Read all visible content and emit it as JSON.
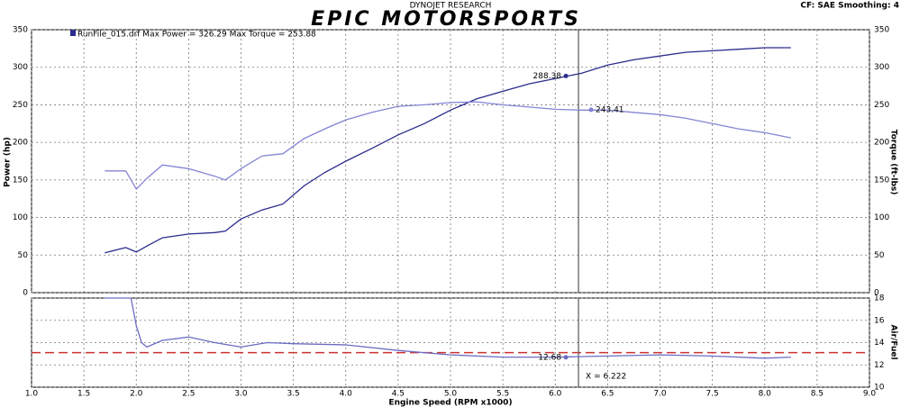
{
  "header": {
    "brand": "DYNOJET RESEARCH",
    "logo": "EPIC MOTORSPORTS",
    "settings": "CF: SAE  Smoothing: 4"
  },
  "chart_data": [
    {
      "type": "line",
      "legend_text": "RunFile_015.drf Max Power = 326.29   Max Torque = 253.88",
      "ylabel": "Power (hp)",
      "y2label": "Torque (ft-lbs)",
      "xlim": [
        1,
        9
      ],
      "ylim": [
        0,
        350
      ],
      "yticks": [
        0,
        50,
        100,
        150,
        200,
        250,
        300,
        350
      ],
      "y2lim": [
        0,
        350
      ],
      "y2ticks": [
        0,
        50,
        100,
        150,
        200,
        250,
        300,
        350
      ],
      "grid": true,
      "cursor_x": 6.222,
      "x": [
        1.7,
        1.9,
        2.0,
        2.1,
        2.25,
        2.5,
        2.75,
        2.85,
        3.0,
        3.2,
        3.4,
        3.6,
        3.8,
        4.0,
        4.25,
        4.5,
        4.75,
        5.0,
        5.25,
        5.5,
        5.75,
        6.0,
        6.25,
        6.5,
        6.75,
        7.0,
        7.25,
        7.5,
        7.75,
        8.0,
        8.25
      ],
      "series": [
        {
          "color": "#2b2b8c",
          "cursor_value": 288.38,
          "values": [
            53,
            60,
            54,
            62,
            73,
            78,
            80,
            82,
            98,
            110,
            118,
            142,
            160,
            175,
            192,
            210,
            225,
            243,
            258,
            268,
            278,
            285,
            292,
            303,
            310,
            315,
            320,
            322,
            324,
            326,
            326
          ]
        },
        {
          "color": "#8484d4",
          "axis": "y2",
          "cursor_value": 243.41,
          "values": [
            162,
            162,
            138,
            152,
            170,
            165,
            155,
            150,
            165,
            182,
            185,
            205,
            218,
            230,
            240,
            248,
            250,
            253,
            254,
            250,
            247,
            244,
            243,
            243,
            240,
            237,
            232,
            225,
            218,
            213,
            206
          ]
        }
      ]
    },
    {
      "type": "line",
      "xlabel": "Engine Speed (RPM x1000)",
      "y2label": "Air/Fuel",
      "xlim": [
        1,
        9
      ],
      "xticks": [
        {
          "value": 1,
          "label": "1.0"
        },
        1.5,
        {
          "value": 2,
          "label": "2.0"
        },
        2.5,
        {
          "value": 3,
          "label": "3.0"
        },
        3.5,
        {
          "value": 4,
          "label": "4.0"
        },
        4.5,
        {
          "value": 5,
          "label": "5.0"
        },
        5.5,
        {
          "value": 6,
          "label": "6.0"
        },
        6.5,
        {
          "value": 7,
          "label": "7.0"
        },
        7.5,
        {
          "value": 8,
          "label": "8.0"
        },
        8.5,
        {
          "value": 9,
          "label": "9.0"
        }
      ],
      "y2lim": [
        10,
        18
      ],
      "y2ticks": [
        10,
        12,
        14,
        16,
        18
      ],
      "grid": true,
      "target_line": 13.1,
      "target_color": "#cc3333",
      "cursor_x": 6.222,
      "cursor_label": "X = 6.222",
      "x": [
        1.7,
        1.95,
        2.0,
        2.05,
        2.1,
        2.25,
        2.5,
        2.75,
        3.0,
        3.25,
        3.5,
        4.0,
        4.5,
        5.0,
        5.5,
        6.0,
        6.5,
        7.0,
        7.5,
        8.0,
        8.25
      ],
      "series": [
        {
          "color": "#6c6cc4",
          "axis": "y2",
          "cursor_value": 12.68,
          "values": [
            18,
            18,
            15.5,
            14,
            13.6,
            14.2,
            14.5,
            14,
            13.6,
            14,
            13.9,
            13.8,
            13.3,
            12.9,
            12.7,
            12.7,
            12.8,
            12.9,
            12.8,
            12.6,
            12.7
          ]
        }
      ]
    }
  ]
}
